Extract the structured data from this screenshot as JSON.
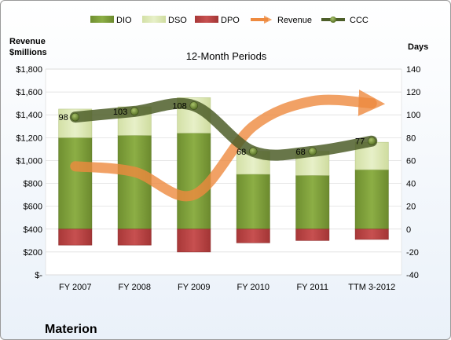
{
  "chart_data": {
    "type": "bar",
    "title": "12-Month Periods",
    "company": "Materion",
    "left_axis_title_line1": "Revenue",
    "left_axis_title_line2": "$millions",
    "right_axis_title": "Days",
    "categories": [
      "FY 2007",
      "FY 2008",
      "FY 2009",
      "FY 2010",
      "FY 2011",
      "TTM 3-2012"
    ],
    "left_axis": {
      "range": [
        0,
        1800
      ],
      "ticks": [
        0,
        200,
        400,
        600,
        800,
        1000,
        1200,
        1400,
        1600,
        1800
      ],
      "tick_labels": [
        "$-",
        "$200",
        "$400",
        "$600",
        "$800",
        "$1,000",
        "$1,200",
        "$1,400",
        "$1,600",
        "$1,800"
      ]
    },
    "right_axis": {
      "range": [
        -40,
        140
      ],
      "ticks": [
        -40,
        -20,
        0,
        20,
        40,
        60,
        80,
        100,
        120,
        140
      ],
      "tick_labels": [
        "-40",
        "-20",
        "0",
        "20",
        "40",
        "60",
        "80",
        "100",
        "120",
        "140"
      ]
    },
    "legend_position": "top",
    "legend": [
      "DIO",
      "DSO",
      "DPO",
      "Revenue",
      "CCC"
    ],
    "series": [
      {
        "name": "DIO",
        "axis": "right",
        "values": [
          80,
          82,
          84,
          48,
          47,
          52
        ]
      },
      {
        "name": "DSO",
        "axis": "right",
        "values": [
          25,
          25,
          31,
          20,
          21,
          24
        ]
      },
      {
        "name": "DPO",
        "axis": "right",
        "values": [
          -14,
          -14,
          -20,
          -12,
          -10,
          -9
        ]
      },
      {
        "name": "Revenue",
        "axis": "left",
        "values": [
          950,
          900,
          700,
          1300,
          1520,
          1500
        ]
      },
      {
        "name": "CCC",
        "axis": "right",
        "values": [
          98,
          103,
          108,
          68,
          68,
          77
        ]
      }
    ],
    "ccc_labels": [
      "98",
      "103",
      "108",
      "68",
      "68",
      "77"
    ],
    "colors": {
      "DIO": "#7a9c39",
      "DSO": "#d9e6b3",
      "DPO": "#b43e3e",
      "Revenue": "#ee8a3f",
      "CCC": "#4d5e29"
    }
  }
}
